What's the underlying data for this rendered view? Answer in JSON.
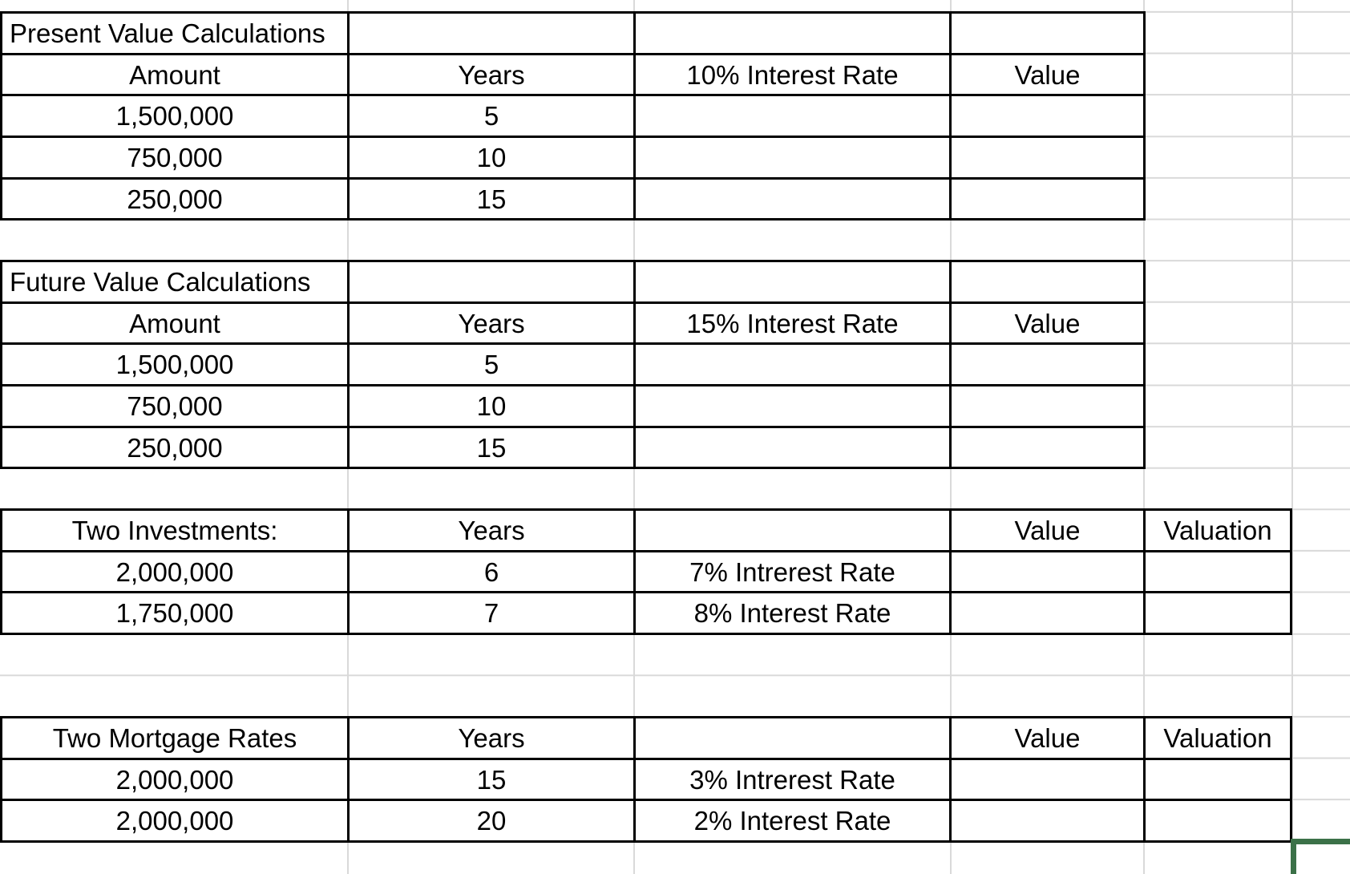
{
  "app": {
    "kind": "spreadsheet-grid",
    "colors": {
      "cell_border": "#000000",
      "gridline": "#d9d9d9",
      "selection_border": "#3b7148",
      "text": "#000000",
      "background": "#ffffff"
    }
  },
  "sections": [
    {
      "id": "present-value-calculations",
      "rows": [
        [
          "Present Value Calculations",
          "",
          "",
          ""
        ],
        [
          "Amount",
          "Years",
          "10% Interest Rate",
          "Value"
        ],
        [
          "1,500,000",
          "5",
          "",
          ""
        ],
        [
          "750,000",
          "10",
          "",
          ""
        ],
        [
          "250,000",
          "15",
          "",
          ""
        ]
      ]
    },
    {
      "id": "future-value-calculations",
      "rows": [
        [
          "Future Value Calculations",
          "",
          "",
          ""
        ],
        [
          "Amount",
          "Years",
          "15% Interest Rate",
          "Value"
        ],
        [
          "1,500,000",
          "5",
          "",
          ""
        ],
        [
          "750,000",
          "10",
          "",
          ""
        ],
        [
          "250,000",
          "15",
          "",
          ""
        ]
      ]
    },
    {
      "id": "two-investments",
      "rows": [
        [
          "Two Investments:",
          "Years",
          "",
          "Value",
          "Valuation"
        ],
        [
          "2,000,000",
          "6",
          "7% Intrerest Rate",
          "",
          ""
        ],
        [
          "1,750,000",
          "7",
          "8% Interest Rate",
          "",
          ""
        ]
      ]
    },
    {
      "id": "two-mortgage-rates",
      "rows": [
        [
          "Two Mortgage Rates",
          "Years",
          "",
          "Value",
          "Valuation"
        ],
        [
          "2,000,000",
          "15",
          "3% Intrerest Rate",
          "",
          ""
        ],
        [
          "2,000,000",
          "20",
          "2% Interest Rate",
          "",
          ""
        ]
      ]
    }
  ]
}
